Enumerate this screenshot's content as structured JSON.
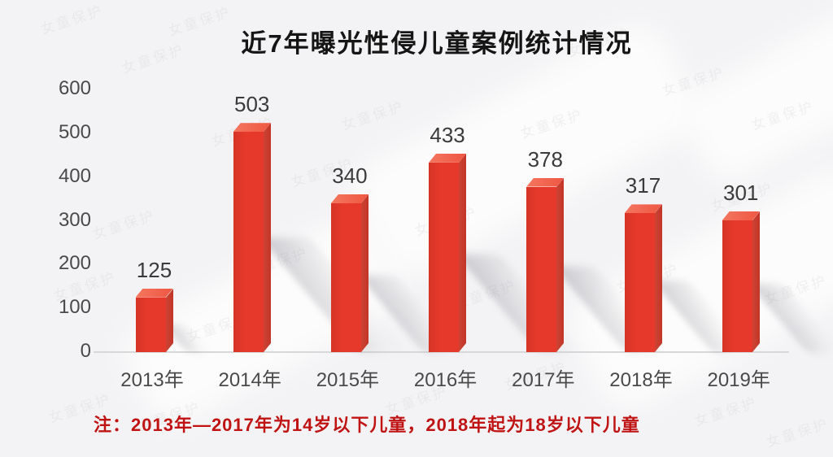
{
  "chart_data": {
    "type": "bar",
    "style": "3d-column",
    "title": "近7年曝光性侵儿童案例统计情况",
    "categories": [
      "2013年",
      "2014年",
      "2015年",
      "2016年",
      "2017年",
      "2018年",
      "2019年"
    ],
    "values": [
      125,
      503,
      340,
      433,
      378,
      317,
      301
    ],
    "xlabel": "",
    "ylabel": "",
    "ylim": [
      0,
      600
    ],
    "yticks": [
      0,
      100,
      200,
      300,
      400,
      500,
      600
    ],
    "grid": false,
    "legend": "none",
    "data_labels": true,
    "note": "注：2013年—2017年为14岁以下儿童，2018年起为18岁以下儿童",
    "colors": {
      "bar_front": "#e6392b",
      "bar_front_edge": "#d63426",
      "bar_top": "#ee5642",
      "bar_top_highlight": "#f4775f",
      "bar_side": "#c23527",
      "bar_side_edge": "#cc4434",
      "title_text": "#151515",
      "axis_text": "#4a4a4a",
      "value_label_text": "#3a3a3a",
      "note_text": "#c01414",
      "background": "#f3f3f5",
      "baseline": "#d8d8da"
    }
  },
  "watermark": {
    "text": "女童保护"
  }
}
